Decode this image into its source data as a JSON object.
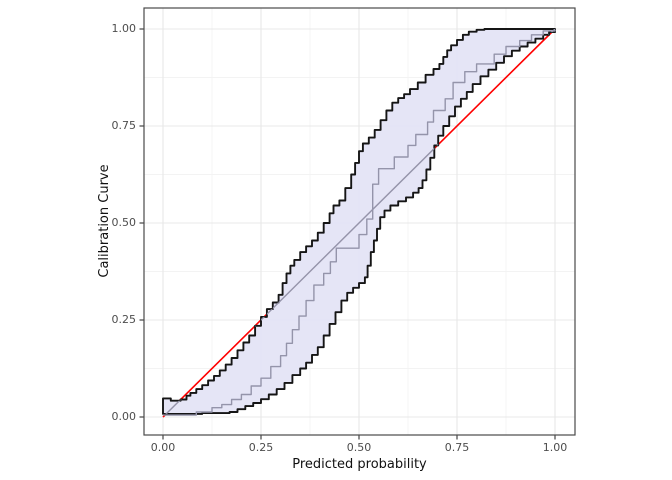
{
  "chart_data": {
    "type": "line",
    "title": "",
    "xlabel": "Predicted probability",
    "ylabel": "Calibration Curve",
    "xlim": [
      0,
      1
    ],
    "ylim": [
      0,
      1
    ],
    "grid": "on",
    "legend": "none",
    "xticks": [
      0,
      0.25,
      0.5,
      0.75,
      1
    ],
    "yticks": [
      0,
      0.25,
      0.5,
      0.75,
      1
    ],
    "xtick_labels": [
      "0.00",
      "0.25",
      "0.50",
      "0.75",
      "1.00"
    ],
    "ytick_labels": [
      "0.00",
      "0.25",
      "0.50",
      "0.75",
      "1.00"
    ],
    "minor_ticks": [
      0.125,
      0.375,
      0.625,
      0.875
    ],
    "colors": {
      "ideal_line": "#ff0000",
      "calibration_line": "#9494aa",
      "band_fill": "#e4e4f6",
      "band_border": "#151515",
      "panel_border": "#4a4a4a",
      "major_grid": "#e8e8e8",
      "minor_grid": "#f3f3f3",
      "tick_text": "#4d4d4d"
    },
    "series": [
      {
        "name": "ideal-diagonal-red",
        "style": "straight",
        "points": [
          [
            0,
            0
          ],
          [
            1,
            1
          ]
        ]
      },
      {
        "name": "calibration-diagonal-gray",
        "style": "straight-clipped-to-band",
        "points": [
          [
            0,
            0
          ],
          [
            1,
            1
          ]
        ]
      },
      {
        "name": "confidence-band-upper",
        "style": "step",
        "points": [
          [
            0,
            0.048
          ],
          [
            0.02,
            0.042
          ],
          [
            0.045,
            0.045
          ],
          [
            0.06,
            0.055
          ],
          [
            0.07,
            0.062
          ],
          [
            0.085,
            0.072
          ],
          [
            0.1,
            0.082
          ],
          [
            0.115,
            0.094
          ],
          [
            0.13,
            0.106
          ],
          [
            0.145,
            0.12
          ],
          [
            0.16,
            0.135
          ],
          [
            0.175,
            0.152
          ],
          [
            0.19,
            0.172
          ],
          [
            0.205,
            0.192
          ],
          [
            0.22,
            0.21
          ],
          [
            0.235,
            0.235
          ],
          [
            0.25,
            0.258
          ],
          [
            0.265,
            0.278
          ],
          [
            0.28,
            0.295
          ],
          [
            0.295,
            0.315
          ],
          [
            0.305,
            0.345
          ],
          [
            0.315,
            0.37
          ],
          [
            0.325,
            0.39
          ],
          [
            0.335,
            0.405
          ],
          [
            0.35,
            0.425
          ],
          [
            0.365,
            0.44
          ],
          [
            0.38,
            0.455
          ],
          [
            0.395,
            0.475
          ],
          [
            0.41,
            0.5
          ],
          [
            0.425,
            0.525
          ],
          [
            0.435,
            0.545
          ],
          [
            0.45,
            0.558
          ],
          [
            0.465,
            0.59
          ],
          [
            0.48,
            0.625
          ],
          [
            0.49,
            0.655
          ],
          [
            0.5,
            0.685
          ],
          [
            0.51,
            0.705
          ],
          [
            0.525,
            0.72
          ],
          [
            0.54,
            0.74
          ],
          [
            0.555,
            0.765
          ],
          [
            0.57,
            0.79
          ],
          [
            0.585,
            0.81
          ],
          [
            0.6,
            0.822
          ],
          [
            0.615,
            0.832
          ],
          [
            0.63,
            0.845
          ],
          [
            0.65,
            0.862
          ],
          [
            0.67,
            0.882
          ],
          [
            0.69,
            0.897
          ],
          [
            0.705,
            0.91
          ],
          [
            0.715,
            0.928
          ],
          [
            0.725,
            0.945
          ],
          [
            0.735,
            0.958
          ],
          [
            0.75,
            0.972
          ],
          [
            0.765,
            0.985
          ],
          [
            0.78,
            0.993
          ],
          [
            0.8,
            0.998
          ],
          [
            0.82,
            1
          ],
          [
            1,
            1
          ]
        ]
      },
      {
        "name": "confidence-band-lower",
        "style": "step",
        "points": [
          [
            0,
            0.008
          ],
          [
            0.06,
            0.008
          ],
          [
            0.1,
            0.01
          ],
          [
            0.14,
            0.01
          ],
          [
            0.17,
            0.013
          ],
          [
            0.19,
            0.02
          ],
          [
            0.21,
            0.028
          ],
          [
            0.23,
            0.036
          ],
          [
            0.25,
            0.046
          ],
          [
            0.27,
            0.058
          ],
          [
            0.29,
            0.072
          ],
          [
            0.31,
            0.088
          ],
          [
            0.33,
            0.108
          ],
          [
            0.35,
            0.125
          ],
          [
            0.365,
            0.14
          ],
          [
            0.38,
            0.16
          ],
          [
            0.395,
            0.18
          ],
          [
            0.41,
            0.21
          ],
          [
            0.425,
            0.24
          ],
          [
            0.44,
            0.27
          ],
          [
            0.455,
            0.3
          ],
          [
            0.47,
            0.32
          ],
          [
            0.485,
            0.333
          ],
          [
            0.5,
            0.345
          ],
          [
            0.515,
            0.36
          ],
          [
            0.522,
            0.39
          ],
          [
            0.53,
            0.425
          ],
          [
            0.538,
            0.455
          ],
          [
            0.546,
            0.485
          ],
          [
            0.554,
            0.515
          ],
          [
            0.565,
            0.532
          ],
          [
            0.58,
            0.545
          ],
          [
            0.6,
            0.556
          ],
          [
            0.62,
            0.566
          ],
          [
            0.638,
            0.578
          ],
          [
            0.652,
            0.59
          ],
          [
            0.662,
            0.61
          ],
          [
            0.672,
            0.638
          ],
          [
            0.682,
            0.668
          ],
          [
            0.692,
            0.7
          ],
          [
            0.702,
            0.725
          ],
          [
            0.715,
            0.75
          ],
          [
            0.73,
            0.775
          ],
          [
            0.745,
            0.8
          ],
          [
            0.76,
            0.82
          ],
          [
            0.775,
            0.838
          ],
          [
            0.79,
            0.858
          ],
          [
            0.81,
            0.878
          ],
          [
            0.83,
            0.895
          ],
          [
            0.85,
            0.913
          ],
          [
            0.87,
            0.93
          ],
          [
            0.89,
            0.944
          ],
          [
            0.91,
            0.955
          ],
          [
            0.93,
            0.965
          ],
          [
            0.95,
            0.975
          ],
          [
            0.97,
            0.985
          ],
          [
            0.985,
            0.992
          ],
          [
            1,
            1
          ]
        ]
      },
      {
        "name": "calibration-step-curve",
        "style": "step",
        "points": [
          [
            0,
            0.005
          ],
          [
            0.085,
            0.013
          ],
          [
            0.125,
            0.024
          ],
          [
            0.15,
            0.032
          ],
          [
            0.175,
            0.045
          ],
          [
            0.2,
            0.058
          ],
          [
            0.225,
            0.08
          ],
          [
            0.25,
            0.1
          ],
          [
            0.275,
            0.13
          ],
          [
            0.3,
            0.158
          ],
          [
            0.315,
            0.19
          ],
          [
            0.33,
            0.225
          ],
          [
            0.347,
            0.26
          ],
          [
            0.365,
            0.3
          ],
          [
            0.385,
            0.34
          ],
          [
            0.41,
            0.37
          ],
          [
            0.427,
            0.4
          ],
          [
            0.442,
            0.435
          ],
          [
            0.5,
            0.47
          ],
          [
            0.52,
            0.51
          ],
          [
            0.535,
            0.6
          ],
          [
            0.55,
            0.64
          ],
          [
            0.59,
            0.67
          ],
          [
            0.625,
            0.7
          ],
          [
            0.645,
            0.728
          ],
          [
            0.675,
            0.76
          ],
          [
            0.69,
            0.79
          ],
          [
            0.72,
            0.82
          ],
          [
            0.74,
            0.862
          ],
          [
            0.77,
            0.89
          ],
          [
            0.8,
            0.91
          ],
          [
            0.845,
            0.935
          ],
          [
            0.875,
            0.955
          ],
          [
            0.91,
            0.97
          ],
          [
            0.94,
            0.985
          ],
          [
            0.97,
            0.995
          ],
          [
            1,
            0.998
          ]
        ]
      }
    ]
  }
}
